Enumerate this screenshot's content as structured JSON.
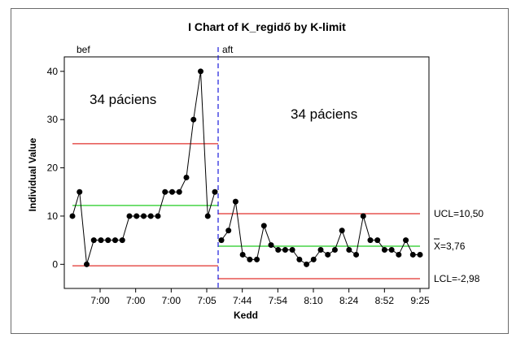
{
  "chart_data": {
    "type": "line",
    "title": "I Chart of K_regidő by K-limit",
    "xlabel": "Kedd",
    "ylabel": "Individual Value",
    "ylim": [
      -5,
      43
    ],
    "yticks": [
      0,
      10,
      20,
      30,
      40
    ],
    "x_tick_labels": [
      "7:00",
      "7:00",
      "7:00",
      "7:05",
      "7:44",
      "7:54",
      "8:10",
      "8:24",
      "8:52",
      "9:25"
    ],
    "grid": false,
    "stages": [
      {
        "name": "bef",
        "annotation": "34 páciens",
        "values": [
          10,
          15,
          0,
          5,
          5,
          5,
          5,
          5,
          10,
          10,
          10,
          10,
          10,
          15,
          15,
          15,
          18,
          30,
          40,
          10,
          15
        ],
        "ucl": 25,
        "mean": 12.2,
        "lcl": -0.3
      },
      {
        "name": "aft",
        "annotation": "34 páciens",
        "values": [
          5,
          7,
          13,
          2,
          1,
          1,
          8,
          4,
          3,
          3,
          3,
          1,
          0,
          1,
          3,
          2,
          3,
          7,
          3,
          2,
          10,
          5,
          5,
          3,
          3,
          2,
          5,
          2,
          2
        ],
        "ucl": 10.5,
        "mean": 3.76,
        "lcl": -2.98,
        "ucl_label": "UCL=10,50",
        "mean_label": "X=3,76",
        "lcl_label": "LCL=-2,98"
      }
    ],
    "colors": {
      "series": "#000000",
      "control_limits": "#e0302c",
      "center_line": "#22cc22",
      "stage_divider": "#1a1adb"
    }
  }
}
